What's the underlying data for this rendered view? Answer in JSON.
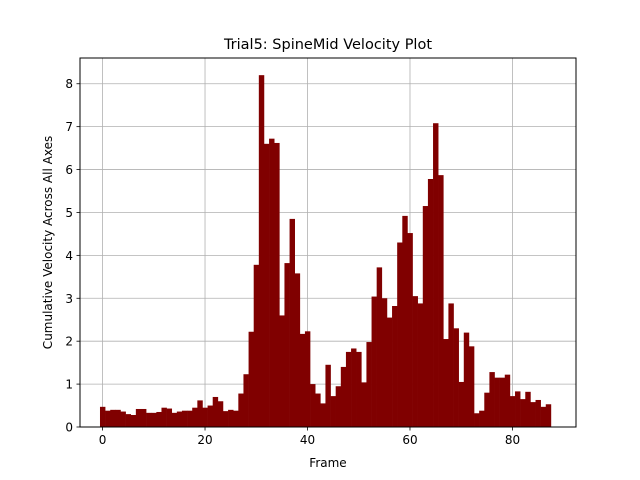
{
  "chart_data": {
    "type": "bar",
    "title": "Trial5: SpineMid Velocity Plot",
    "xlabel": "Frame",
    "ylabel": "Cumulative Velocity Across All Axes",
    "xlim": [
      -4.4,
      92.4
    ],
    "ylim": [
      0,
      8.6
    ],
    "xticks": [
      0,
      20,
      40,
      60,
      80
    ],
    "yticks": [
      0,
      1,
      2,
      3,
      4,
      5,
      6,
      7,
      8
    ],
    "grid": true,
    "bar_color": "#800000",
    "x": [
      0,
      1,
      2,
      3,
      4,
      5,
      6,
      7,
      8,
      9,
      10,
      11,
      12,
      13,
      14,
      15,
      16,
      17,
      18,
      19,
      20,
      21,
      22,
      23,
      24,
      25,
      26,
      27,
      28,
      29,
      30,
      31,
      32,
      33,
      34,
      35,
      36,
      37,
      38,
      39,
      40,
      41,
      42,
      43,
      44,
      45,
      46,
      47,
      48,
      49,
      50,
      51,
      52,
      53,
      54,
      55,
      56,
      57,
      58,
      59,
      60,
      61,
      62,
      63,
      64,
      65,
      66,
      67,
      68,
      69,
      70,
      71,
      72,
      73,
      74,
      75,
      76,
      77,
      78,
      79,
      80,
      81,
      82,
      83,
      84,
      85,
      86,
      87,
      88
    ],
    "values": [
      0.47,
      0.38,
      0.4,
      0.4,
      0.36,
      0.3,
      0.28,
      0.42,
      0.42,
      0.33,
      0.33,
      0.35,
      0.45,
      0.43,
      0.33,
      0.36,
      0.38,
      0.38,
      0.45,
      0.62,
      0.45,
      0.5,
      0.7,
      0.6,
      0.37,
      0.4,
      0.38,
      0.78,
      1.23,
      2.22,
      3.78,
      8.2,
      6.6,
      6.72,
      6.62,
      2.6,
      3.82,
      4.85,
      3.58,
      2.17,
      2.23,
      1.0,
      0.78,
      0.55,
      1.45,
      0.72,
      0.95,
      1.4,
      1.75,
      1.83,
      1.75,
      1.04,
      1.98,
      3.04,
      3.72,
      3.0,
      2.55,
      2.82,
      4.3,
      4.92,
      4.52,
      3.05,
      2.88,
      5.15,
      5.78,
      7.08,
      5.87,
      2.05,
      2.88,
      2.3,
      1.05,
      2.2,
      1.88,
      0.32,
      0.38,
      0.8,
      1.28,
      1.15,
      1.15,
      1.22,
      0.72,
      0.83,
      0.65,
      0.82,
      0.58,
      0.63,
      0.47,
      0.53,
      0.0
    ]
  }
}
